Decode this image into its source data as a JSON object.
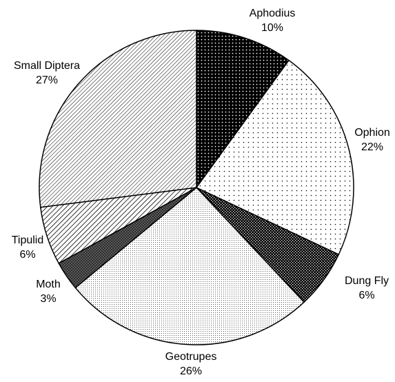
{
  "chart_data": {
    "type": "pie",
    "categories": [
      "Aphodius",
      "Ophion",
      "Dung Fly",
      "Geotrupes",
      "Moth",
      "Tipulid",
      "Small Diptera"
    ],
    "values": [
      10,
      22,
      6,
      26,
      3,
      6,
      27
    ],
    "value_labels": [
      "10%",
      "22%",
      "6%",
      "26%",
      "3%",
      "6%",
      "27%"
    ],
    "start_angle": 90,
    "direction": "clockwise"
  }
}
